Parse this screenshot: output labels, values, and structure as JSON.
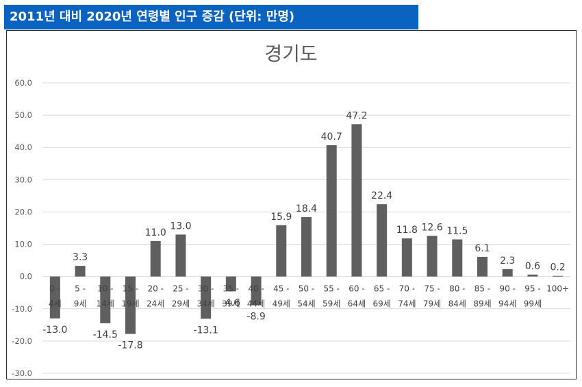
{
  "header": {
    "title": "2011년 대비 2020년 연령별 인구 증감 (단위: 만명)"
  },
  "colors": {
    "header_bg": "#0b63c1",
    "bar": "#5f5f5f",
    "grid": "#d9d9d9"
  },
  "chart_data": {
    "type": "bar",
    "title": "경기도",
    "xlabel": "",
    "ylabel": "",
    "ylim": [
      -30,
      60
    ],
    "ytick_step": 10,
    "ytick_labels": [
      "-30.0",
      "-20.0",
      "-10.0",
      "0.0",
      "10.0",
      "20.0",
      "30.0",
      "40.0",
      "50.0",
      "60.0"
    ],
    "categories": [
      [
        "0 -",
        "4세"
      ],
      [
        "5 -",
        "9세"
      ],
      [
        "10 -",
        "14세"
      ],
      [
        "15 -",
        "19세"
      ],
      [
        "20 -",
        "24세"
      ],
      [
        "25 -",
        "29세"
      ],
      [
        "30 -",
        "34세"
      ],
      [
        "35 -",
        "39세"
      ],
      [
        "40 -",
        "44세"
      ],
      [
        "45 -",
        "49세"
      ],
      [
        "50 -",
        "54세"
      ],
      [
        "55 -",
        "59세"
      ],
      [
        "60 -",
        "64세"
      ],
      [
        "65 -",
        "69세"
      ],
      [
        "70 -",
        "74세"
      ],
      [
        "75 -",
        "79세"
      ],
      [
        "80 -",
        "84세"
      ],
      [
        "85 -",
        "89세"
      ],
      [
        "90 -",
        "94세"
      ],
      [
        "95 -",
        "99세"
      ],
      [
        "100+"
      ]
    ],
    "values": [
      -13.0,
      3.3,
      -14.5,
      -17.8,
      11.0,
      13.0,
      -13.1,
      -4.6,
      -8.9,
      15.9,
      18.4,
      40.7,
      47.2,
      22.4,
      11.8,
      12.6,
      11.5,
      6.1,
      2.3,
      0.6,
      0.2
    ],
    "data_labels": [
      "-13.0",
      "3.3",
      "-14.5",
      "-17.8",
      "11.0",
      "13.0",
      "-13.1",
      "-4.6",
      "-8.9",
      "15.9",
      "18.4",
      "40.7",
      "47.2",
      "22.4",
      "11.8",
      "12.6",
      "11.5",
      "6.1",
      "2.3",
      "0.6",
      "0.2"
    ],
    "grid": true,
    "legend": "none"
  }
}
